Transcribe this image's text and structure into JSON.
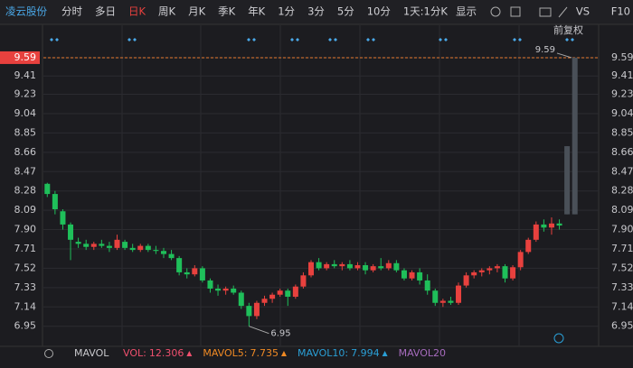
{
  "toolbar": {
    "stock": "凌云股份",
    "tabs": [
      "分时",
      "多日",
      "日K",
      "周K",
      "月K",
      "季K",
      "年K",
      "1分",
      "3分",
      "5分",
      "10分",
      "1天:1分K"
    ],
    "active": "日K",
    "display": "显示",
    "vs": "VS",
    "f10": "F10"
  },
  "chart_data": {
    "type": "candlestick",
    "adjust": "前复权",
    "ylim": [
      6.77,
      9.82
    ],
    "yticks": [
      6.95,
      7.14,
      7.33,
      7.52,
      7.71,
      {
        "value": 7.9,
        "label": "7.90"
      },
      8.09,
      8.28,
      8.47,
      8.66,
      8.85,
      9.04,
      9.23,
      9.41,
      9.59
    ],
    "grid": true,
    "colors": {
      "up": "#e8413e",
      "down": "#1fbf5a",
      "pending": "#4a5058"
    },
    "candles": [
      [
        8.35,
        8.36,
        8.22,
        8.25
      ],
      [
        8.25,
        8.28,
        8.05,
        8.1
      ],
      [
        8.08,
        8.1,
        7.9,
        7.95
      ],
      [
        7.95,
        7.97,
        7.6,
        7.8
      ],
      [
        7.78,
        7.82,
        7.72,
        7.76
      ],
      [
        7.76,
        7.8,
        7.7,
        7.73
      ],
      [
        7.73,
        7.78,
        7.7,
        7.76
      ],
      [
        7.76,
        7.8,
        7.72,
        7.74
      ],
      [
        7.74,
        7.78,
        7.68,
        7.72
      ],
      [
        7.72,
        7.85,
        7.7,
        7.8
      ],
      [
        7.78,
        7.8,
        7.7,
        7.72
      ],
      [
        7.72,
        7.76,
        7.68,
        7.7
      ],
      [
        7.7,
        7.76,
        7.68,
        7.74
      ],
      [
        7.74,
        7.76,
        7.68,
        7.7
      ],
      [
        7.7,
        7.74,
        7.66,
        7.69
      ],
      [
        7.69,
        7.72,
        7.62,
        7.66
      ],
      [
        7.66,
        7.7,
        7.6,
        7.62
      ],
      [
        7.62,
        7.64,
        7.45,
        7.48
      ],
      [
        7.48,
        7.52,
        7.42,
        7.46
      ],
      [
        7.46,
        7.55,
        7.44,
        7.52
      ],
      [
        7.52,
        7.54,
        7.38,
        7.4
      ],
      [
        7.4,
        7.42,
        7.28,
        7.32
      ],
      [
        7.32,
        7.36,
        7.25,
        7.3
      ],
      [
        7.3,
        7.34,
        7.26,
        7.32
      ],
      [
        7.32,
        7.35,
        7.26,
        7.28
      ],
      [
        7.28,
        7.3,
        7.12,
        7.15
      ],
      [
        7.15,
        7.18,
        6.95,
        7.05
      ],
      [
        7.05,
        7.2,
        7.02,
        7.18
      ],
      [
        7.18,
        7.25,
        7.15,
        7.22
      ],
      [
        7.22,
        7.28,
        7.18,
        7.26
      ],
      [
        7.26,
        7.32,
        7.24,
        7.3
      ],
      [
        7.3,
        7.32,
        7.15,
        7.24
      ],
      [
        7.24,
        7.36,
        7.22,
        7.34
      ],
      [
        7.34,
        7.48,
        7.32,
        7.45
      ],
      [
        7.45,
        7.6,
        7.43,
        7.58
      ],
      [
        7.58,
        7.62,
        7.5,
        7.52
      ],
      [
        7.52,
        7.58,
        7.5,
        7.56
      ],
      [
        7.56,
        7.6,
        7.52,
        7.54
      ],
      [
        7.54,
        7.58,
        7.5,
        7.56
      ],
      [
        7.56,
        7.6,
        7.5,
        7.52
      ],
      [
        7.52,
        7.58,
        7.5,
        7.55
      ],
      [
        7.55,
        7.58,
        7.46,
        7.5
      ],
      [
        7.5,
        7.56,
        7.48,
        7.54
      ],
      [
        7.54,
        7.62,
        7.5,
        7.52
      ],
      [
        7.52,
        7.6,
        7.5,
        7.57
      ],
      [
        7.57,
        7.6,
        7.48,
        7.5
      ],
      [
        7.5,
        7.52,
        7.4,
        7.42
      ],
      [
        7.42,
        7.5,
        7.4,
        7.48
      ],
      [
        7.48,
        7.52,
        7.36,
        7.4
      ],
      [
        7.4,
        7.46,
        7.26,
        7.3
      ],
      [
        7.3,
        7.32,
        7.15,
        7.18
      ],
      [
        7.18,
        7.22,
        7.14,
        7.2
      ],
      [
        7.2,
        7.24,
        7.16,
        7.18
      ],
      [
        7.18,
        7.38,
        7.16,
        7.35
      ],
      [
        7.35,
        7.48,
        7.33,
        7.45
      ],
      [
        7.45,
        7.5,
        7.42,
        7.48
      ],
      [
        7.48,
        7.52,
        7.44,
        7.5
      ],
      [
        7.5,
        7.54,
        7.46,
        7.52
      ],
      [
        7.52,
        7.56,
        7.48,
        7.54
      ],
      [
        7.54,
        7.56,
        7.38,
        7.42
      ],
      [
        7.42,
        7.55,
        7.4,
        7.53
      ],
      [
        7.53,
        7.7,
        7.5,
        7.68
      ],
      [
        7.68,
        7.82,
        7.66,
        7.8
      ],
      [
        7.8,
        7.98,
        7.78,
        7.95
      ],
      [
        7.95,
        8.0,
        7.88,
        7.92
      ],
      [
        7.92,
        8.02,
        7.85,
        7.96
      ],
      [
        7.96,
        8.0,
        7.9,
        7.94
      ]
    ],
    "pending_candles": [
      [
        8.05,
        8.72,
        8.05,
        8.72
      ],
      [
        8.05,
        9.59,
        8.05,
        9.59
      ]
    ],
    "last_price": 9.59,
    "high_label": 9.59,
    "low_label": 6.95,
    "indicator": {
      "name": "MAVOL",
      "items": [
        {
          "name": "VOL:",
          "value": 12.306,
          "color": "#f0506e"
        },
        {
          "name": "MAVOL5:",
          "value": 7.735,
          "color": "#f08a24"
        },
        {
          "name": "MAVOL10:",
          "value": 7.994,
          "color": "#2a9fd6"
        },
        {
          "name": "MAVOL20",
          "color": "#a66bbd"
        }
      ]
    }
  }
}
